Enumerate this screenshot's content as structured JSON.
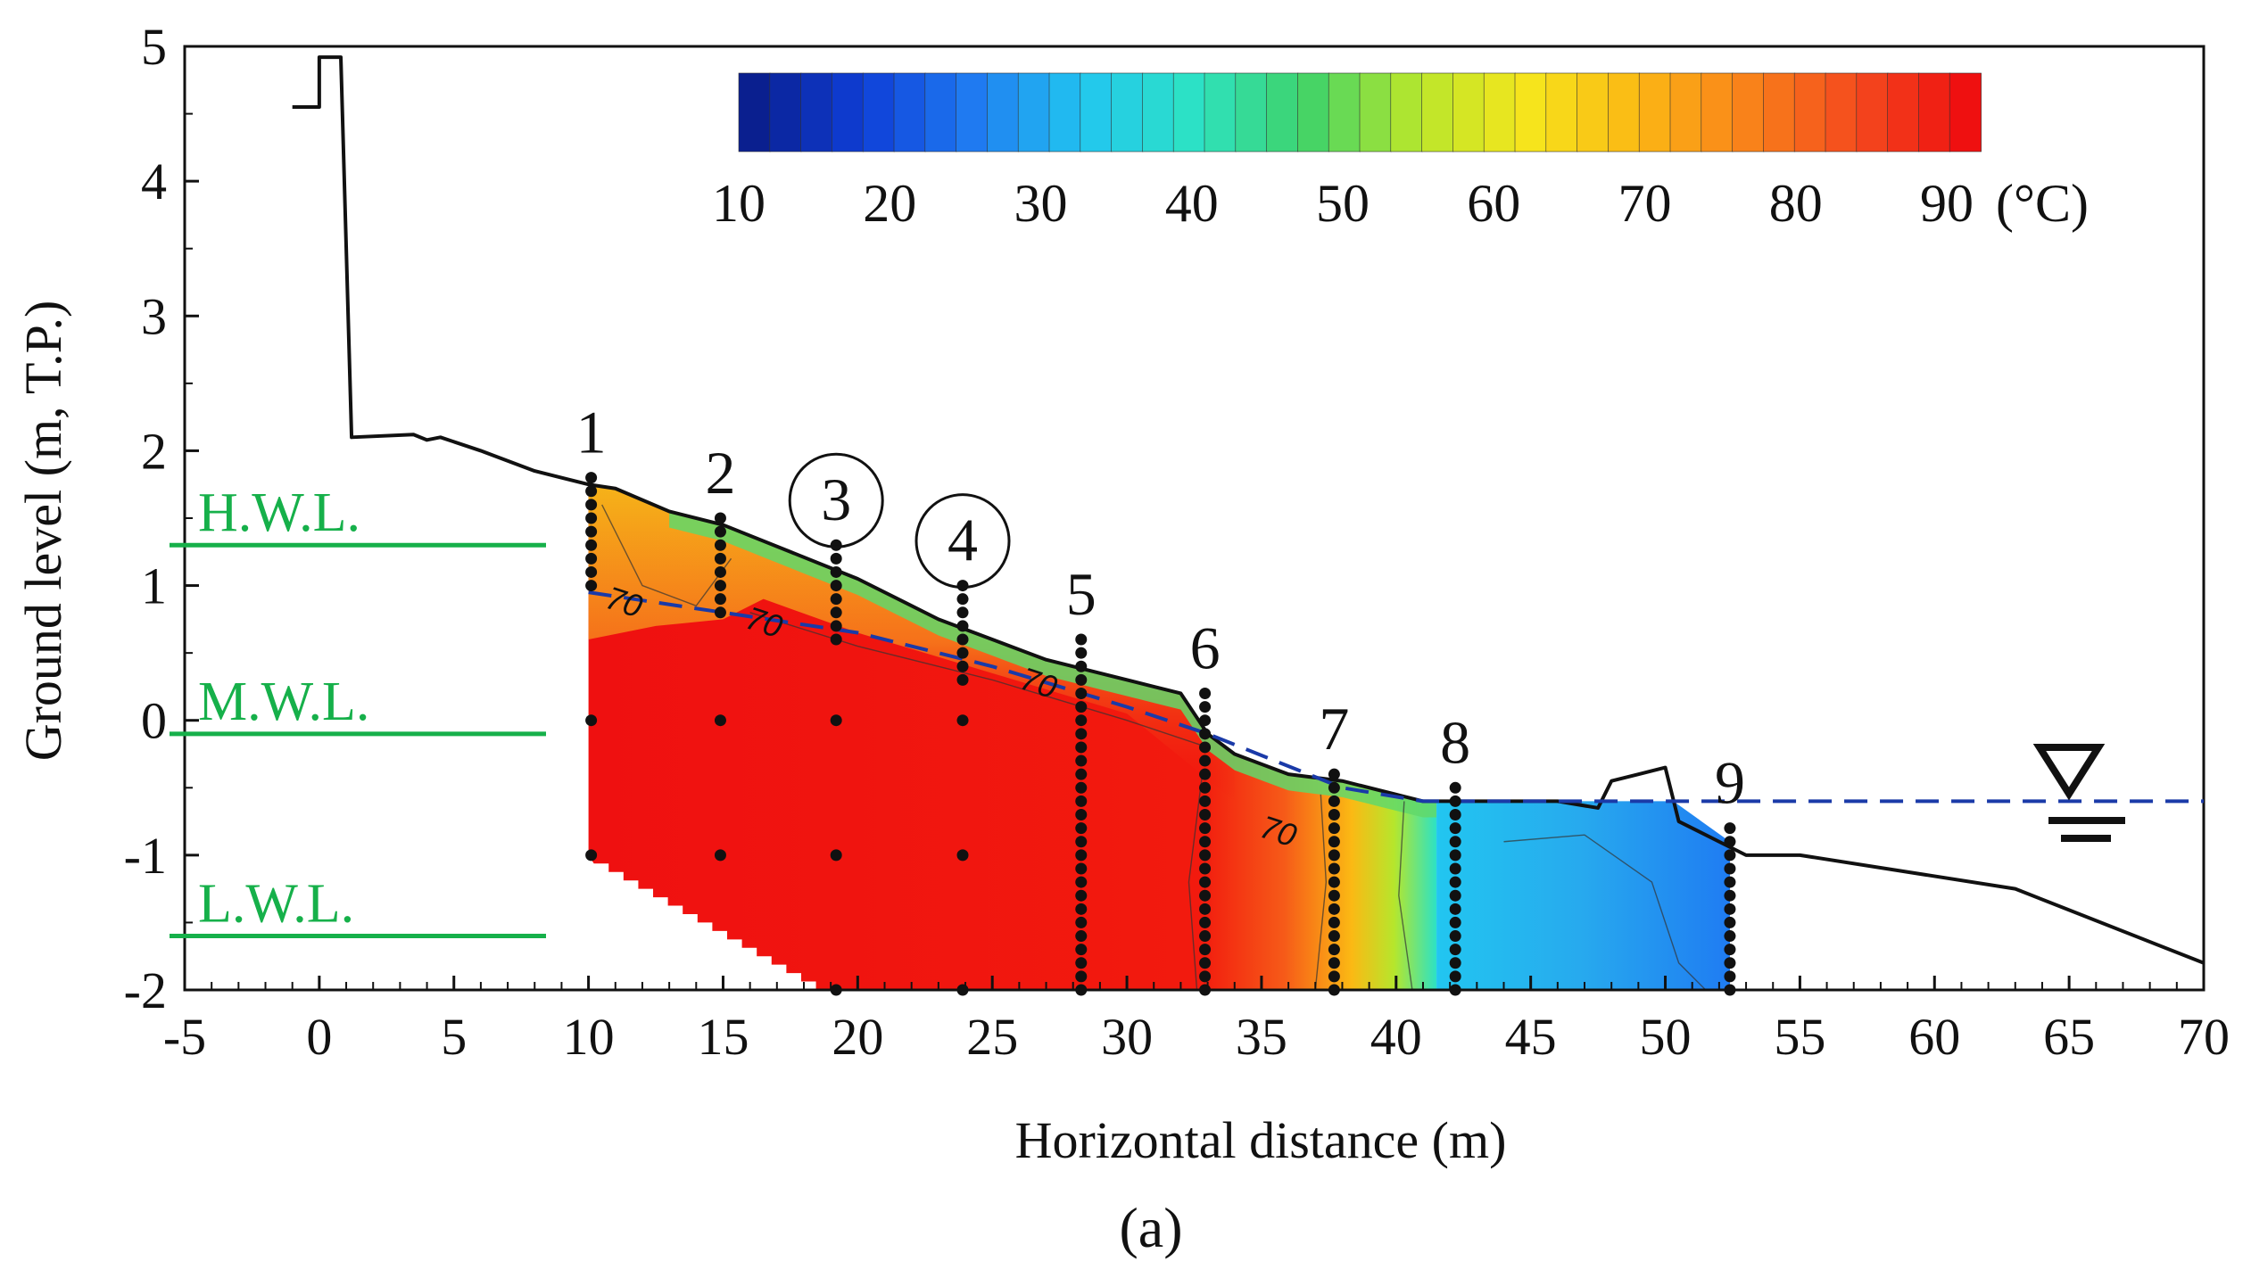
{
  "chart_data": {
    "type": "heatmap",
    "title": "",
    "xlabel": "Horizontal distance (m)",
    "ylabel": "Ground level (m, T.P.)",
    "xlim": [
      -5,
      70
    ],
    "ylim": [
      -2,
      5
    ],
    "x_ticks": [
      "-5",
      "0",
      "5",
      "10",
      "15",
      "20",
      "25",
      "30",
      "35",
      "40",
      "45",
      "50",
      "55",
      "60",
      "65",
      "70"
    ],
    "y_ticks": [
      "5",
      "4",
      "3",
      "2",
      "1",
      "0",
      "-1",
      "-2"
    ],
    "colorbar": {
      "min": 10,
      "max": 90,
      "ticks": [
        "10",
        "20",
        "30",
        "40",
        "50",
        "60",
        "70",
        "80",
        "90"
      ],
      "unit": "(°C)",
      "colors": [
        "#0a1f8f",
        "#0f3fd8",
        "#1f7cf2",
        "#22c6f0",
        "#2de2c4",
        "#3ed36a",
        "#b6e62c",
        "#f6e61c",
        "#fbb914",
        "#f9831a",
        "#f44b1e",
        "#ef1010"
      ]
    },
    "water_levels": [
      {
        "label": "H.W.L.",
        "elevation": 1.3
      },
      {
        "label": "M.W.L.",
        "elevation": -0.1
      },
      {
        "label": "L.W.L.",
        "elevation": -1.6
      }
    ],
    "ground_profile": [
      [
        -1,
        4.55
      ],
      [
        0,
        4.55
      ],
      [
        0,
        4.92
      ],
      [
        0.8,
        4.92
      ],
      [
        1.2,
        2.1
      ],
      [
        3.5,
        2.12
      ],
      [
        4,
        2.08
      ],
      [
        4.5,
        2.1
      ],
      [
        6,
        2.0
      ],
      [
        8,
        1.85
      ],
      [
        10,
        1.75
      ],
      [
        11,
        1.72
      ],
      [
        13,
        1.55
      ],
      [
        15,
        1.45
      ],
      [
        17.5,
        1.25
      ],
      [
        20,
        1.05
      ],
      [
        23,
        0.75
      ],
      [
        25,
        0.6
      ],
      [
        27,
        0.45
      ],
      [
        29,
        0.35
      ],
      [
        31,
        0.25
      ],
      [
        32,
        0.2
      ],
      [
        33,
        -0.1
      ],
      [
        34,
        -0.25
      ],
      [
        36,
        -0.4
      ],
      [
        38,
        -0.45
      ],
      [
        40,
        -0.55
      ],
      [
        41,
        -0.6
      ],
      [
        43.5,
        -0.6
      ],
      [
        46,
        -0.6
      ],
      [
        47.5,
        -0.65
      ],
      [
        48,
        -0.45
      ],
      [
        49,
        -0.4
      ],
      [
        50,
        -0.35
      ],
      [
        50.5,
        -0.75
      ],
      [
        52,
        -0.9
      ],
      [
        53,
        -1.0
      ],
      [
        55,
        -1.0
      ],
      [
        63,
        -1.25
      ],
      [
        70,
        -1.8
      ]
    ],
    "water_table": [
      [
        10,
        0.95
      ],
      [
        15,
        0.8
      ],
      [
        20,
        0.65
      ],
      [
        25,
        0.4
      ],
      [
        30,
        0.1
      ],
      [
        33,
        -0.1
      ],
      [
        38,
        -0.5
      ],
      [
        41,
        -0.6
      ],
      [
        70,
        -0.6
      ]
    ],
    "boreholes": [
      {
        "label": "1",
        "x": 10.1,
        "top": 1.8,
        "bottom": -1.0,
        "circled": false
      },
      {
        "label": "2",
        "x": 14.9,
        "top": 1.5,
        "bottom": -1.0,
        "circled": false
      },
      {
        "label": "3",
        "x": 19.2,
        "top": 1.3,
        "bottom": -2.0,
        "circled": true
      },
      {
        "label": "4",
        "x": 23.9,
        "top": 1.0,
        "bottom": -2.0,
        "circled": true
      },
      {
        "label": "5",
        "x": 28.3,
        "top": 0.6,
        "bottom": -2.0,
        "circled": false
      },
      {
        "label": "6",
        "x": 32.9,
        "top": 0.2,
        "bottom": -2.0,
        "circled": false
      },
      {
        "label": "7",
        "x": 37.7,
        "top": -0.4,
        "bottom": -2.0,
        "circled": false
      },
      {
        "label": "8",
        "x": 42.2,
        "top": -0.5,
        "bottom": -2.0,
        "circled": false
      },
      {
        "label": "9",
        "x": 52.4,
        "top": -0.8,
        "bottom": -2.0,
        "circled": false
      }
    ],
    "contour_labels": [
      {
        "text": "70",
        "x": 11.2,
        "y": 0.8
      },
      {
        "text": "70",
        "x": 16.4,
        "y": 0.65
      },
      {
        "text": "70",
        "x": 26.6,
        "y": 0.2
      },
      {
        "text": "70",
        "x": 35.5,
        "y": -0.9
      }
    ]
  },
  "panel_label": "(a)"
}
